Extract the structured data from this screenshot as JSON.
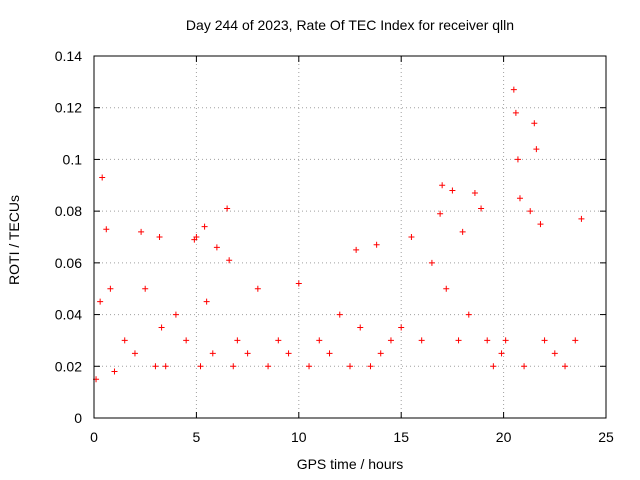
{
  "chart_data": {
    "type": "scatter",
    "title": "Day 244 of 2023, Rate Of TEC Index for receiver qlln",
    "xlabel": "GPS time / hours",
    "ylabel": "ROTI / TECUs",
    "xlim": [
      0,
      25
    ],
    "ylim": [
      0,
      0.14
    ],
    "xticks": [
      "0",
      "5",
      "10",
      "15",
      "20",
      "25"
    ],
    "yticks": [
      "0",
      "0.02",
      "0.04",
      "0.06",
      "0.08",
      "0.1",
      "0.12",
      "0.14"
    ],
    "grid": true,
    "marker": "+",
    "color": "#ff0000",
    "series": [
      {
        "name": "ROTI",
        "x": [
          0.1,
          0.3,
          0.4,
          0.6,
          0.8,
          1.0,
          1.5,
          2.0,
          2.3,
          2.5,
          3.0,
          3.2,
          3.3,
          3.5,
          4.0,
          4.5,
          4.9,
          5.0,
          5.2,
          5.4,
          5.5,
          5.8,
          6.0,
          6.5,
          6.6,
          6.8,
          7.0,
          7.5,
          8.0,
          8.5,
          9.0,
          9.5,
          10.0,
          10.5,
          11.0,
          11.5,
          12.0,
          12.5,
          12.8,
          13.0,
          13.5,
          13.8,
          14.0,
          14.5,
          15.0,
          15.5,
          16.0,
          16.5,
          16.9,
          17.0,
          17.2,
          17.5,
          17.8,
          18.0,
          18.3,
          18.6,
          18.9,
          19.2,
          19.5,
          19.9,
          20.1,
          20.5,
          20.6,
          20.7,
          20.8,
          21.0,
          21.3,
          21.5,
          21.6,
          21.8,
          22.0,
          22.5,
          23.0,
          23.5,
          23.8
        ],
        "y": [
          0.015,
          0.045,
          0.093,
          0.073,
          0.05,
          0.018,
          0.03,
          0.025,
          0.072,
          0.05,
          0.02,
          0.07,
          0.035,
          0.02,
          0.04,
          0.03,
          0.069,
          0.07,
          0.02,
          0.074,
          0.045,
          0.025,
          0.066,
          0.081,
          0.061,
          0.02,
          0.03,
          0.025,
          0.05,
          0.02,
          0.03,
          0.025,
          0.052,
          0.02,
          0.03,
          0.025,
          0.04,
          0.02,
          0.065,
          0.035,
          0.02,
          0.067,
          0.025,
          0.03,
          0.035,
          0.07,
          0.03,
          0.06,
          0.079,
          0.09,
          0.05,
          0.088,
          0.03,
          0.072,
          0.04,
          0.087,
          0.081,
          0.03,
          0.02,
          0.025,
          0.03,
          0.127,
          0.118,
          0.1,
          0.085,
          0.02,
          0.08,
          0.114,
          0.104,
          0.075,
          0.03,
          0.025,
          0.02,
          0.03,
          0.077
        ]
      }
    ]
  }
}
